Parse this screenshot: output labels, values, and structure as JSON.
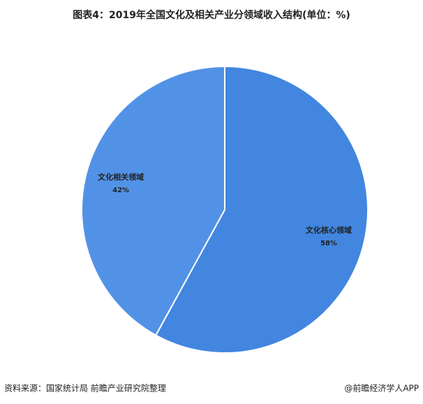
{
  "chart_data": {
    "type": "pie",
    "title": "图表4：2019年全国文化及相关产业分领域收入结构(单位：%)",
    "categories": [
      "文化核心领域",
      "文化相关领域"
    ],
    "values": [
      58,
      42
    ],
    "value_labels": [
      "58%",
      "42%"
    ],
    "colors": [
      "#4286e0",
      "#5292e6"
    ],
    "source": "资料来源：国家统计局 前瞻产业研究院整理",
    "credit": "@前瞻经济学人APP"
  }
}
